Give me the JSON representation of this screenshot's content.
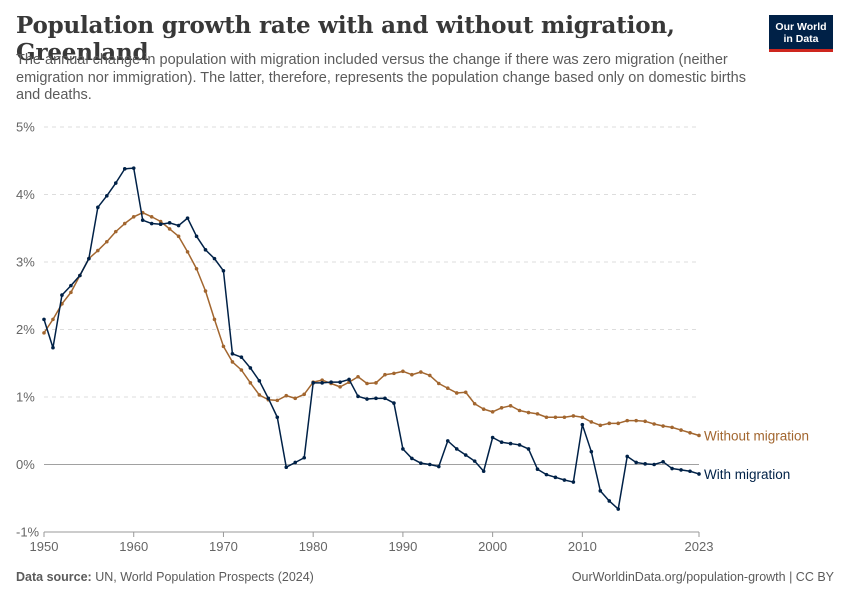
{
  "header": {
    "title": "Population growth rate with and without migration, Greenland",
    "subtitle": "The annual change in population with migration included versus the change if there was zero migration (neither emigration nor immigration). The latter, therefore, represents the population change based only on domestic births and deaths.",
    "logo_line1": "Our World",
    "logo_line2": "in Data"
  },
  "footer": {
    "source_label": "Data source:",
    "source_text": "UN, World Population Prospects (2024)",
    "url_text": "OurWorldinData.org/population-growth | CC BY"
  },
  "colors": {
    "with_migration": "#002147",
    "without_migration": "#a2662f",
    "logo_bg": "#002147",
    "logo_accent": "#ce261e"
  },
  "chart_data": {
    "type": "line",
    "title": "Population growth rate with and without migration, Greenland",
    "xlabel": "",
    "ylabel": "",
    "xlim": [
      1950,
      2023
    ],
    "ylim": [
      -1,
      5
    ],
    "y_ticks": [
      -1,
      0,
      1,
      2,
      3,
      4,
      5
    ],
    "y_tick_labels": [
      "-1%",
      "0%",
      "1%",
      "2%",
      "3%",
      "4%",
      "5%"
    ],
    "x_ticks": [
      1950,
      1960,
      1970,
      1980,
      1990,
      2000,
      2010,
      2023
    ],
    "x_tick_labels": [
      "1950",
      "1960",
      "1970",
      "1980",
      "1990",
      "2000",
      "2010",
      "2023"
    ],
    "grid": true,
    "legend": "line-end labels",
    "x": [
      1950,
      1951,
      1952,
      1953,
      1954,
      1955,
      1956,
      1957,
      1958,
      1959,
      1960,
      1961,
      1962,
      1963,
      1964,
      1965,
      1966,
      1967,
      1968,
      1969,
      1970,
      1971,
      1972,
      1973,
      1974,
      1975,
      1976,
      1977,
      1978,
      1979,
      1980,
      1981,
      1982,
      1983,
      1984,
      1985,
      1986,
      1987,
      1988,
      1989,
      1990,
      1991,
      1992,
      1993,
      1994,
      1995,
      1996,
      1997,
      1998,
      1999,
      2000,
      2001,
      2002,
      2003,
      2004,
      2005,
      2006,
      2007,
      2008,
      2009,
      2010,
      2011,
      2012,
      2013,
      2014,
      2015,
      2016,
      2017,
      2018,
      2019,
      2020,
      2021,
      2022,
      2023
    ],
    "series": [
      {
        "name": "With migration",
        "values": [
          2.15,
          1.73,
          2.51,
          2.65,
          2.8,
          3.05,
          3.81,
          3.98,
          4.17,
          4.38,
          4.39,
          3.62,
          3.57,
          3.56,
          3.58,
          3.54,
          3.65,
          3.38,
          3.18,
          3.05,
          2.87,
          1.64,
          1.59,
          1.43,
          1.24,
          0.98,
          0.7,
          -0.04,
          0.03,
          0.1,
          1.21,
          1.21,
          1.22,
          1.22,
          1.26,
          1.01,
          0.97,
          0.98,
          0.98,
          0.91,
          0.23,
          0.09,
          0.02,
          0.0,
          -0.03,
          0.35,
          0.23,
          0.14,
          0.05,
          -0.1,
          0.4,
          0.33,
          0.31,
          0.29,
          0.23,
          -0.07,
          -0.15,
          -0.19,
          -0.23,
          -0.26,
          0.59,
          0.19,
          -0.39,
          -0.54,
          -0.66,
          0.12,
          0.03,
          0.01,
          0.0,
          0.04,
          -0.06,
          -0.08,
          -0.1,
          -0.14
        ]
      },
      {
        "name": "Without migration",
        "values": [
          1.95,
          2.15,
          2.38,
          2.55,
          2.8,
          3.05,
          3.17,
          3.3,
          3.45,
          3.57,
          3.67,
          3.73,
          3.67,
          3.6,
          3.49,
          3.38,
          3.15,
          2.9,
          2.57,
          2.15,
          1.75,
          1.52,
          1.4,
          1.21,
          1.03,
          0.96,
          0.95,
          1.02,
          0.98,
          1.04,
          1.22,
          1.25,
          1.2,
          1.15,
          1.22,
          1.3,
          1.2,
          1.21,
          1.33,
          1.35,
          1.38,
          1.33,
          1.37,
          1.32,
          1.2,
          1.13,
          1.06,
          1.07,
          0.9,
          0.82,
          0.78,
          0.84,
          0.87,
          0.8,
          0.77,
          0.75,
          0.7,
          0.7,
          0.7,
          0.72,
          0.7,
          0.63,
          0.58,
          0.61,
          0.61,
          0.65,
          0.65,
          0.64,
          0.6,
          0.57,
          0.55,
          0.51,
          0.47,
          0.43
        ]
      }
    ]
  }
}
